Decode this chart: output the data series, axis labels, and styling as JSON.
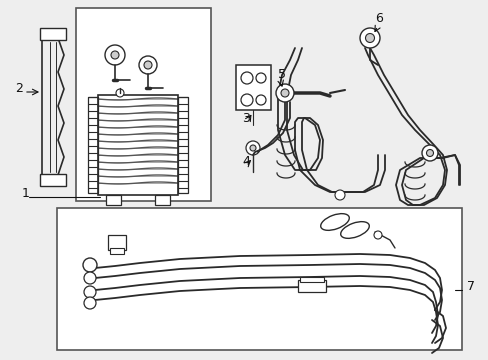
{
  "bg_color": "#eeeeee",
  "line_color": "#2a2a2a",
  "box_color": "#ffffff",
  "box_edge": "#444444",
  "label_color": "#111111",
  "figsize": [
    4.89,
    3.6
  ],
  "dpi": 100
}
